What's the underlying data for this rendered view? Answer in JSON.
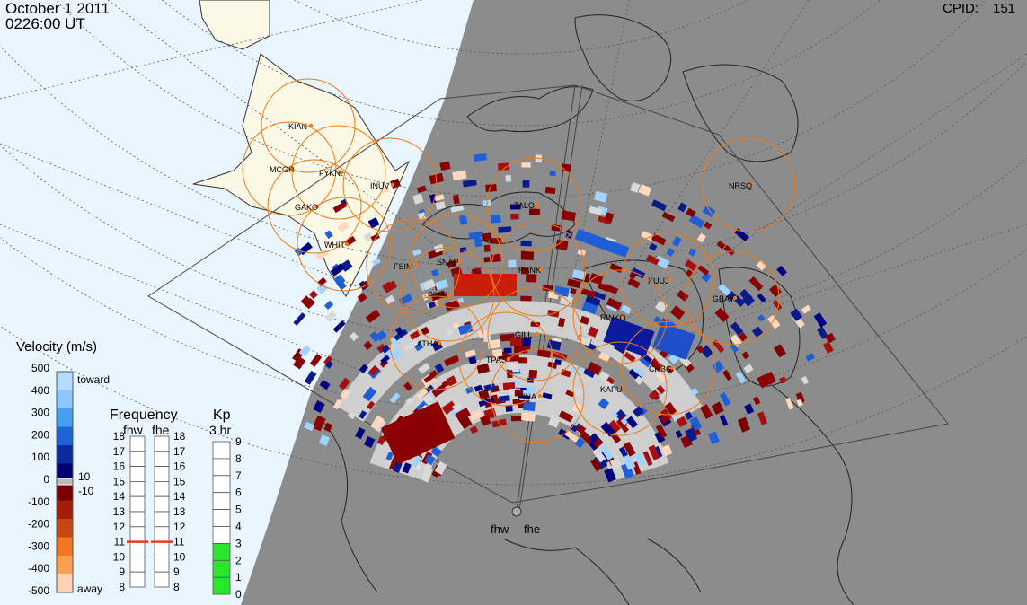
{
  "header": {
    "date": "October  1 2011",
    "time": "0226:00 UT",
    "cpid_label": "CPID:",
    "cpid_value": "151"
  },
  "stations": [
    {
      "code": "KIAN"
    },
    {
      "code": "MCGR"
    },
    {
      "code": "FYKN"
    },
    {
      "code": "INUV"
    },
    {
      "code": "GAKO"
    },
    {
      "code": "WHIT"
    },
    {
      "code": "FSIM"
    },
    {
      "code": "SNAP"
    },
    {
      "code": "FSMI"
    },
    {
      "code": "RANK"
    },
    {
      "code": "TALO"
    },
    {
      "code": "NRSQ"
    },
    {
      "code": "KUUJ"
    },
    {
      "code": "GBAY"
    },
    {
      "code": "RINKO"
    },
    {
      "code": "ATHA"
    },
    {
      "code": "GILL"
    },
    {
      "code": "TPAS"
    },
    {
      "code": "CHBG"
    },
    {
      "code": "PINA"
    },
    {
      "code": "KAPU"
    }
  ],
  "radars": {
    "left": "fhw",
    "right": "fhe"
  },
  "velocity_scale": {
    "title": "Velocity (m/s)",
    "ticks": [
      "500",
      "400",
      "300",
      "200",
      "100",
      "0",
      "-100",
      "-200",
      "-300",
      "-400",
      "-500"
    ],
    "toward_label": "toward",
    "away_label": "away",
    "ground_pos": "10",
    "ground_neg": "-10"
  },
  "frequency_panel": {
    "title": "Frequency",
    "subtitle_left": "fhw",
    "subtitle_right": "fhe",
    "ticks": [
      "18",
      "17",
      "16",
      "15",
      "14",
      "13",
      "12",
      "11",
      "10",
      "9",
      "8"
    ],
    "fhw_value": 11,
    "fhe_value": 11
  },
  "kp_panel": {
    "title": "Kp",
    "subtitle": "3 hr",
    "ticks": [
      "9",
      "8",
      "7",
      "6",
      "5",
      "4",
      "3",
      "2",
      "1",
      "0"
    ],
    "value": 3
  }
}
